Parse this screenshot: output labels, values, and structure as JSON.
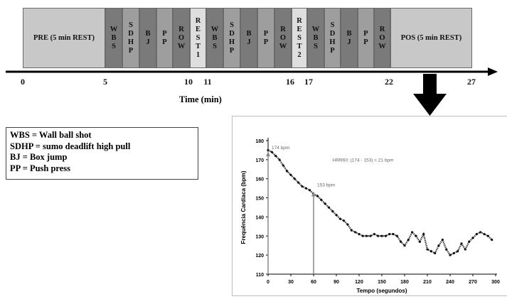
{
  "timeline": {
    "blocks": [
      {
        "id": "pre",
        "text": "PRE (5 min REST)"
      },
      {
        "id": "wbs1",
        "text": "WBS"
      },
      {
        "id": "sdhp1",
        "text": "SDHP"
      },
      {
        "id": "bj1",
        "text": "BJ"
      },
      {
        "id": "pp1",
        "text": "PP"
      },
      {
        "id": "row1",
        "text": "ROW"
      },
      {
        "id": "rest1",
        "text": "REST1"
      },
      {
        "id": "wbs2",
        "text": "WBS"
      },
      {
        "id": "sdhp2",
        "text": "SDHP"
      },
      {
        "id": "bj2",
        "text": "BJ"
      },
      {
        "id": "pp2",
        "text": "PP"
      },
      {
        "id": "row2",
        "text": "ROW"
      },
      {
        "id": "rest2",
        "text": "REST2"
      },
      {
        "id": "wbs3",
        "text": "WBS"
      },
      {
        "id": "sdhp3",
        "text": "SDHP"
      },
      {
        "id": "bj3",
        "text": "BJ"
      },
      {
        "id": "pp3",
        "text": "PP"
      },
      {
        "id": "row3",
        "text": "ROW"
      },
      {
        "id": "pos",
        "text": "POS (5 min REST)"
      }
    ],
    "ticks": [
      "0",
      "5",
      "10",
      "11",
      "16",
      "17",
      "22",
      "27"
    ],
    "axis_label": "Time (min)"
  },
  "legend": {
    "lines": [
      "WBS = Wall ball shot",
      "SDHP = sumo deadlift high pull",
      "BJ = Box jump",
      "PP = Push press"
    ]
  },
  "colors": {
    "dark": "#7a7a7a",
    "medium": "#9e9e9e",
    "light": "#dedede",
    "wide": "#c8c8c8",
    "arrow": "#000000"
  },
  "chart_data": {
    "type": "scatter",
    "xlabel": "Tempo (segundos)",
    "ylabel": "Frequência Cardíaca (bpm)",
    "xlim": [
      0,
      300
    ],
    "ylim": [
      110,
      180
    ],
    "xticks": [
      0,
      30,
      60,
      90,
      120,
      150,
      180,
      210,
      240,
      270,
      300
    ],
    "yticks": [
      110,
      120,
      130,
      140,
      150,
      160,
      170,
      180
    ],
    "annotations": {
      "peak": "174 bpm",
      "sixty": "153 bpm",
      "hrr": "HRR60: (174 - 153) = 21 bpm"
    },
    "marker_x": [
      0,
      60
    ],
    "marker_y": [
      174,
      153
    ],
    "series": [
      {
        "x": [
          0,
          5,
          10,
          15,
          20,
          25,
          30,
          35,
          40,
          45,
          50,
          55,
          60,
          65,
          70,
          75,
          80,
          85,
          90,
          95,
          100,
          105,
          110,
          115,
          120,
          125,
          130,
          135,
          140,
          145,
          150,
          155,
          160,
          165,
          170,
          175,
          180,
          185,
          190,
          195,
          200,
          205,
          210,
          215,
          220,
          225,
          230,
          235,
          240,
          245,
          250,
          255,
          260,
          265,
          270,
          275,
          280,
          285,
          290,
          295
        ],
        "y": [
          175,
          174,
          172,
          170,
          167,
          164,
          162,
          160,
          158,
          156,
          155,
          154,
          152,
          151,
          149,
          147,
          145,
          143,
          141,
          139,
          138,
          136,
          133,
          132,
          131,
          130,
          130,
          130,
          131,
          130,
          130,
          130,
          131,
          131,
          130,
          127,
          125,
          128,
          132,
          130,
          127,
          131,
          123,
          122,
          121,
          125,
          128,
          123,
          120,
          121,
          122,
          126,
          123,
          127,
          129,
          131,
          132,
          131,
          130,
          128
        ]
      }
    ]
  }
}
